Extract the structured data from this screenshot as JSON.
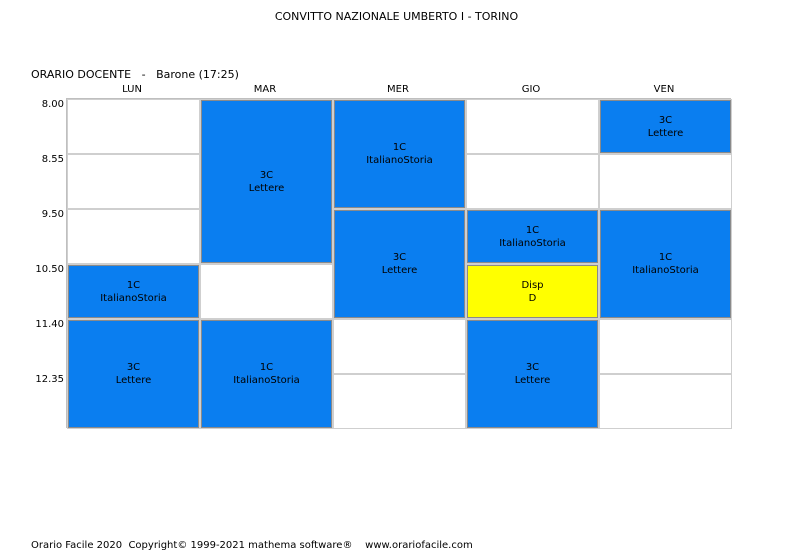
{
  "header": {
    "school": "CONVITTO NAZIONALE UMBERTO I - TORINO",
    "schedule_title": "ORARIO DOCENTE",
    "separator": "-",
    "teacher": "Barone (17:25)"
  },
  "days": [
    "LUN",
    "MAR",
    "MER",
    "GIO",
    "VEN"
  ],
  "times": [
    "8.00",
    "8.55",
    "9.50",
    "10.50",
    "11.40",
    "12.35"
  ],
  "colors": {
    "lesson": "#0a7ef0",
    "availability": "#ffff00"
  },
  "lessons": [
    {
      "day": 0,
      "start_period": 3,
      "periods": 1,
      "class": "1C",
      "subject": "ItalianoStoria",
      "color": "lesson"
    },
    {
      "day": 0,
      "start_period": 4,
      "periods": 2,
      "class": "3C",
      "subject": "Lettere",
      "color": "lesson"
    },
    {
      "day": 1,
      "start_period": 0,
      "periods": 3,
      "class": "3C",
      "subject": "Lettere",
      "color": "lesson"
    },
    {
      "day": 1,
      "start_period": 4,
      "periods": 2,
      "class": "1C",
      "subject": "ItalianoStoria",
      "color": "lesson"
    },
    {
      "day": 2,
      "start_period": 0,
      "periods": 2,
      "class": "1C",
      "subject": "ItalianoStoria",
      "color": "lesson"
    },
    {
      "day": 2,
      "start_period": 2,
      "periods": 2,
      "class": "3C",
      "subject": "Lettere",
      "color": "lesson"
    },
    {
      "day": 3,
      "start_period": 2,
      "periods": 1,
      "class": "1C",
      "subject": "ItalianoStoria",
      "color": "lesson"
    },
    {
      "day": 3,
      "start_period": 3,
      "periods": 1,
      "class": "Disp",
      "subject": "D",
      "color": "availability"
    },
    {
      "day": 3,
      "start_period": 4,
      "periods": 2,
      "class": "3C",
      "subject": "Lettere",
      "color": "lesson"
    },
    {
      "day": 4,
      "start_period": 0,
      "periods": 1,
      "class": "3C",
      "subject": "Lettere",
      "color": "lesson"
    },
    {
      "day": 4,
      "start_period": 2,
      "periods": 2,
      "class": "1C",
      "subject": "ItalianoStoria",
      "color": "lesson"
    }
  ],
  "footer": {
    "text": "Orario Facile 2020  Copyright© 1999-2021 mathema software®    www.orariofacile.com"
  }
}
